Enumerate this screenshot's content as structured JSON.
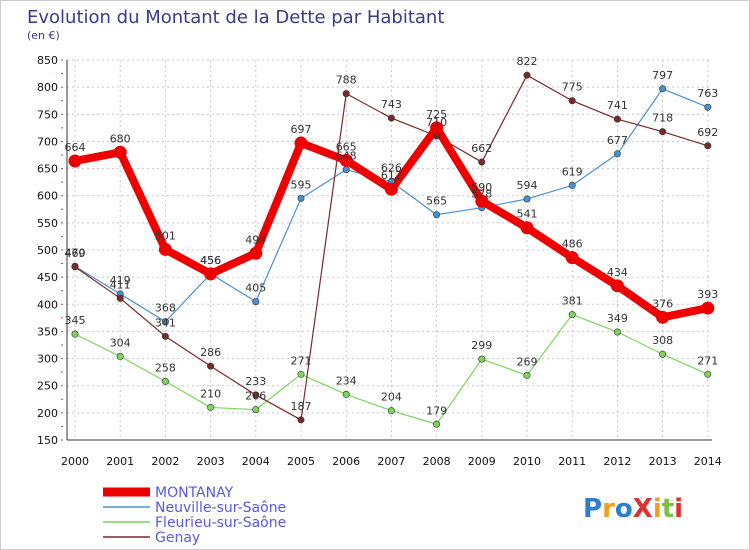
{
  "chart_data": {
    "type": "line",
    "title": "Evolution du Montant de la Dette par Habitant",
    "subtitle": "(en €)",
    "xlabel": "",
    "ylabel": "",
    "ylim": [
      150,
      850
    ],
    "yticks": [
      150,
      200,
      250,
      300,
      350,
      400,
      450,
      500,
      550,
      600,
      650,
      700,
      750,
      800,
      850
    ],
    "categories": [
      "2000",
      "2001",
      "2002",
      "2003",
      "2004",
      "2005",
      "2006",
      "2007",
      "2008",
      "2009",
      "2010",
      "2011",
      "2012",
      "2013",
      "2014"
    ],
    "grid": true,
    "legend_position": "bottom-left",
    "series": [
      {
        "name": "MONTANAY",
        "color": "#ee0000",
        "emphasis": true,
        "values": [
          664,
          680,
          501,
          456,
          494,
          697,
          665,
          612,
          725,
          590,
          541,
          486,
          434,
          376,
          393
        ]
      },
      {
        "name": "Neuville-sur-Saône",
        "color": "#4a90d0",
        "values": [
          470,
          419,
          368,
          456,
          405,
          595,
          648,
          626,
          565,
          578,
          594,
          619,
          677,
          797,
          763
        ]
      },
      {
        "name": "Fleurieu-sur-Saône",
        "color": "#7dd65a",
        "values": [
          345,
          304,
          258,
          210,
          206,
          271,
          234,
          204,
          179,
          299,
          269,
          381,
          349,
          308,
          271
        ]
      },
      {
        "name": "Genay",
        "color": "#7a2a2a",
        "values": [
          469,
          411,
          341,
          286,
          233,
          187,
          788,
          743,
          710,
          662,
          822,
          775,
          741,
          718,
          692
        ]
      }
    ]
  },
  "branding": {
    "logo_text": "ProXiti"
  }
}
